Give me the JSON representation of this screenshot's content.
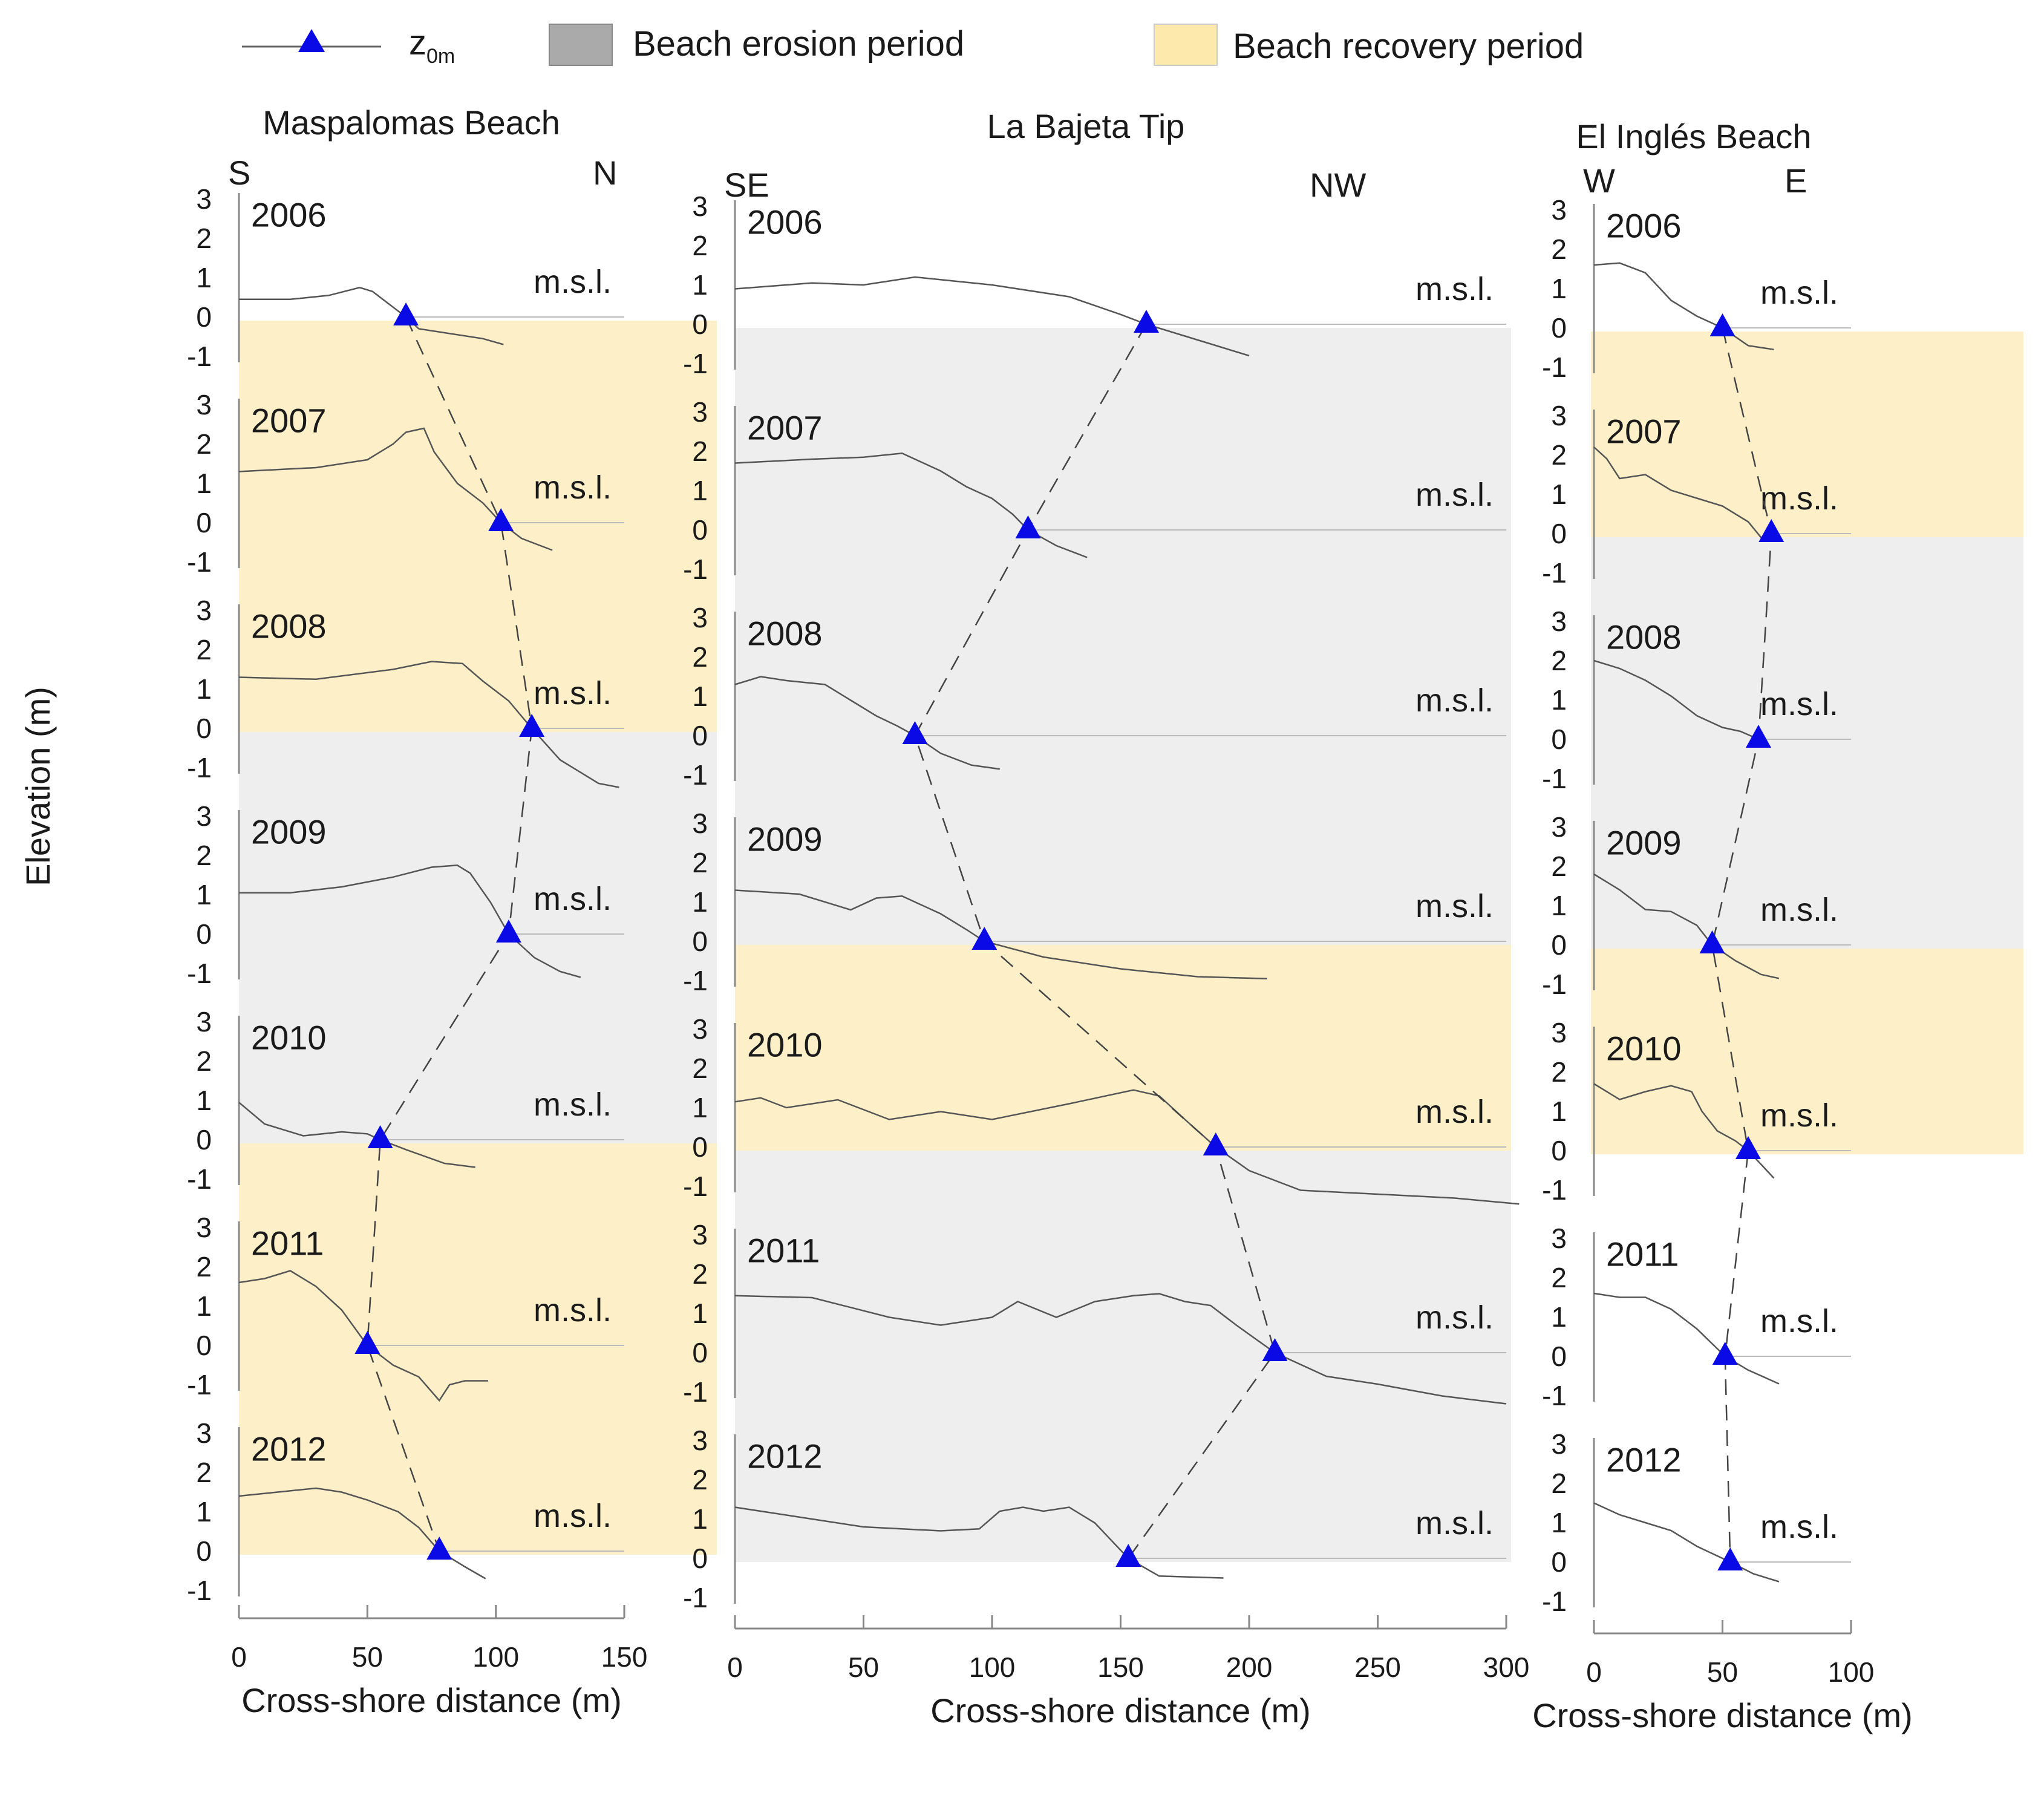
{
  "chart_data": {
    "type": "line",
    "title": "",
    "ylabel": "Elevation (m)",
    "xlabel": "Cross-shore distance (m)",
    "ytick_labels": [
      "3",
      "2",
      "1",
      "0",
      "-1"
    ],
    "msl_label": "m.s.l.",
    "colors": {
      "erosion": "#eeeeee",
      "recovery": "#fdf0c8",
      "marker": "#0a0ae6",
      "profile": "#555555"
    },
    "legend": {
      "marker_label": "z",
      "marker_sub": "0m",
      "erosion_label": "Beach erosion period",
      "recovery_label": "Beach recovery period"
    },
    "years": [
      "2006",
      "2007",
      "2008",
      "2009",
      "2010",
      "2011",
      "2012"
    ],
    "panels": [
      {
        "title": "Maspalomas Beach",
        "dir_left": "S",
        "dir_right": "N",
        "xlim": [
          0,
          150
        ],
        "xticks": [
          0,
          50,
          100,
          150
        ],
        "periods": [
          {
            "from": "2006",
            "to": "2007",
            "type": "recovery"
          },
          {
            "from": "2007",
            "to": "2008",
            "type": "recovery"
          },
          {
            "from": "2008",
            "to": "2009",
            "type": "erosion"
          },
          {
            "from": "2009",
            "to": "2010",
            "type": "erosion"
          },
          {
            "from": "2010",
            "to": "2011",
            "type": "recovery"
          },
          {
            "from": "2011",
            "to": "2012",
            "type": "recovery"
          }
        ],
        "profiles": [
          {
            "year": "2006",
            "z0m": 65,
            "x": [
              0,
              20,
              35,
              47,
              52,
              60,
              65,
              70,
              80,
              95,
              103
            ],
            "y": [
              0.45,
              0.45,
              0.55,
              0.75,
              0.65,
              0.25,
              0.0,
              -0.3,
              -0.4,
              -0.55,
              -0.7
            ]
          },
          {
            "year": "2007",
            "z0m": 102,
            "x": [
              0,
              30,
              50,
              60,
              65,
              72,
              76,
              85,
              95,
              102,
              110,
              122
            ],
            "y": [
              1.3,
              1.4,
              1.6,
              2.0,
              2.3,
              2.4,
              1.8,
              1.0,
              0.5,
              0.0,
              -0.4,
              -0.7
            ]
          },
          {
            "year": "2008",
            "z0m": 114,
            "x": [
              0,
              30,
              60,
              75,
              87,
              95,
              105,
              114,
              125,
              140,
              148
            ],
            "y": [
              1.3,
              1.25,
              1.5,
              1.7,
              1.65,
              1.2,
              0.7,
              0.0,
              -0.8,
              -1.4,
              -1.5
            ]
          },
          {
            "year": "2009",
            "z0m": 105,
            "x": [
              0,
              20,
              40,
              60,
              75,
              85,
              90,
              98,
              105,
              115,
              125,
              133
            ],
            "y": [
              1.05,
              1.05,
              1.2,
              1.45,
              1.7,
              1.75,
              1.55,
              0.8,
              0.0,
              -0.6,
              -0.95,
              -1.1
            ]
          },
          {
            "year": "2010",
            "z0m": 55,
            "x": [
              0,
              10,
              25,
              40,
              50,
              55,
              65,
              80,
              92
            ],
            "y": [
              0.95,
              0.4,
              0.1,
              0.2,
              0.15,
              0.0,
              -0.25,
              -0.6,
              -0.7
            ]
          },
          {
            "year": "2011",
            "z0m": 50,
            "x": [
              0,
              10,
              20,
              30,
              40,
              50,
              60,
              70,
              78,
              82,
              88,
              97
            ],
            "y": [
              1.6,
              1.7,
              1.9,
              1.5,
              0.9,
              0.0,
              -0.5,
              -0.8,
              -1.4,
              -1.0,
              -0.9,
              -0.9
            ]
          },
          {
            "year": "2012",
            "z0m": 78,
            "x": [
              0,
              15,
              30,
              40,
              50,
              62,
              70,
              78,
              88,
              96
            ],
            "y": [
              1.4,
              1.5,
              1.6,
              1.5,
              1.3,
              1.0,
              0.6,
              0.0,
              -0.4,
              -0.7
            ]
          }
        ]
      },
      {
        "title": "La Bajeta Tip",
        "dir_left": "SE",
        "dir_right": "NW",
        "xlim": [
          0,
          300
        ],
        "xticks": [
          0,
          50,
          100,
          150,
          200,
          250,
          300
        ],
        "periods": [
          {
            "from": "2006",
            "to": "2007",
            "type": "erosion"
          },
          {
            "from": "2007",
            "to": "2008",
            "type": "erosion"
          },
          {
            "from": "2008",
            "to": "2009",
            "type": "erosion"
          },
          {
            "from": "2009",
            "to": "2010",
            "type": "recovery"
          },
          {
            "from": "2010",
            "to": "2011",
            "type": "erosion"
          },
          {
            "from": "2011",
            "to": "2012",
            "type": "erosion"
          }
        ],
        "profiles": [
          {
            "year": "2006",
            "z0m": 160,
            "x": [
              0,
              30,
              50,
              70,
              100,
              130,
              150,
              160,
              175,
              190,
              200
            ],
            "y": [
              0.9,
              1.05,
              1.0,
              1.2,
              1.0,
              0.7,
              0.25,
              0.0,
              -0.3,
              -0.6,
              -0.8
            ]
          },
          {
            "year": "2007",
            "z0m": 114,
            "x": [
              0,
              30,
              50,
              65,
              80,
              90,
              100,
              108,
              114,
              125,
              137
            ],
            "y": [
              1.7,
              1.8,
              1.85,
              1.95,
              1.5,
              1.1,
              0.8,
              0.4,
              0.0,
              -0.4,
              -0.7
            ]
          },
          {
            "year": "2008",
            "z0m": 70,
            "x": [
              0,
              10,
              20,
              35,
              45,
              55,
              63,
              70,
              80,
              92,
              103
            ],
            "y": [
              1.3,
              1.5,
              1.4,
              1.3,
              0.9,
              0.5,
              0.25,
              0.0,
              -0.45,
              -0.75,
              -0.85
            ]
          },
          {
            "year": "2009",
            "z0m": 97,
            "x": [
              0,
              25,
              45,
              55,
              65,
              80,
              90,
              97,
              120,
              150,
              180,
              207
            ],
            "y": [
              1.3,
              1.2,
              0.8,
              1.1,
              1.15,
              0.7,
              0.3,
              0.0,
              -0.4,
              -0.7,
              -0.9,
              -0.95
            ]
          },
          {
            "year": "2010",
            "z0m": 187,
            "x": [
              0,
              10,
              20,
              40,
              60,
              80,
              100,
              130,
              155,
              165,
              175,
              187,
              200,
              220,
              250,
              280,
              305
            ],
            "y": [
              1.15,
              1.25,
              1.0,
              1.2,
              0.7,
              0.9,
              0.7,
              1.1,
              1.45,
              1.3,
              0.7,
              0.0,
              -0.6,
              -1.1,
              -1.2,
              -1.3,
              -1.45
            ]
          },
          {
            "year": "2011",
            "z0m": 210,
            "x": [
              0,
              30,
              60,
              80,
              100,
              110,
              125,
              140,
              155,
              165,
              175,
              185,
              195,
              210,
              230,
              250,
              275,
              300
            ],
            "y": [
              1.45,
              1.4,
              0.9,
              0.7,
              0.9,
              1.3,
              0.9,
              1.3,
              1.45,
              1.5,
              1.3,
              1.2,
              0.7,
              0.0,
              -0.6,
              -0.8,
              -1.1,
              -1.3
            ]
          },
          {
            "year": "2012",
            "z0m": 153,
            "x": [
              0,
              30,
              50,
              80,
              95,
              103,
              112,
              120,
              130,
              140,
              153,
              165,
              190
            ],
            "y": [
              1.3,
              1.0,
              0.8,
              0.7,
              0.75,
              1.2,
              1.3,
              1.2,
              1.3,
              0.9,
              0.0,
              -0.45,
              -0.5
            ]
          }
        ]
      },
      {
        "title": "El Inglés Beach",
        "dir_left": "W",
        "dir_right": "E",
        "xlim": [
          0,
          100
        ],
        "xticks": [
          0,
          50,
          100
        ],
        "periods": [
          {
            "from": "2006",
            "to": "2007",
            "type": "recovery"
          },
          {
            "from": "2007",
            "to": "2008",
            "type": "erosion"
          },
          {
            "from": "2008",
            "to": "2009",
            "type": "erosion"
          },
          {
            "from": "2009",
            "to": "2010",
            "type": "recovery"
          },
          {
            "from": "2010",
            "to": "2011",
            "type": "none"
          },
          {
            "from": "2011",
            "to": "2012",
            "type": "none"
          }
        ],
        "profiles": [
          {
            "year": "2006",
            "z0m": 50,
            "x": [
              0,
              10,
              20,
              30,
              40,
              50,
              60,
              70
            ],
            "y": [
              1.6,
              1.65,
              1.4,
              0.7,
              0.3,
              0.0,
              -0.45,
              -0.55
            ]
          },
          {
            "year": "2007",
            "z0m": 69,
            "x": [
              0,
              5,
              10,
              20,
              30,
              40,
              50,
              60,
              65,
              69
            ],
            "y": [
              2.2,
              1.9,
              1.4,
              1.5,
              1.1,
              0.9,
              0.7,
              0.3,
              -0.1,
              0.0
            ]
          },
          {
            "year": "2008",
            "z0m": 64,
            "x": [
              0,
              10,
              20,
              30,
              40,
              50,
              57,
              64
            ],
            "y": [
              2.0,
              1.8,
              1.5,
              1.1,
              0.6,
              0.3,
              0.2,
              0.0
            ]
          },
          {
            "year": "2009",
            "z0m": 46,
            "x": [
              0,
              10,
              20,
              30,
              40,
              46,
              55,
              65,
              72
            ],
            "y": [
              1.8,
              1.4,
              0.9,
              0.85,
              0.5,
              0.0,
              -0.4,
              -0.75,
              -0.85
            ]
          },
          {
            "year": "2010",
            "z0m": 60,
            "x": [
              0,
              10,
              20,
              30,
              38,
              42,
              48,
              55,
              60,
              70
            ],
            "y": [
              1.7,
              1.3,
              1.5,
              1.65,
              1.5,
              1.0,
              0.5,
              0.25,
              0.0,
              -0.7
            ]
          },
          {
            "year": "2011",
            "z0m": 51,
            "x": [
              0,
              10,
              20,
              30,
              40,
              51,
              60,
              72
            ],
            "y": [
              1.6,
              1.5,
              1.5,
              1.2,
              0.7,
              0.0,
              -0.35,
              -0.7
            ]
          },
          {
            "year": "2012",
            "z0m": 53,
            "x": [
              0,
              10,
              20,
              30,
              40,
              53,
              62,
              72
            ],
            "y": [
              1.5,
              1.2,
              1.0,
              0.8,
              0.4,
              0.0,
              -0.3,
              -0.5
            ]
          }
        ]
      }
    ]
  }
}
